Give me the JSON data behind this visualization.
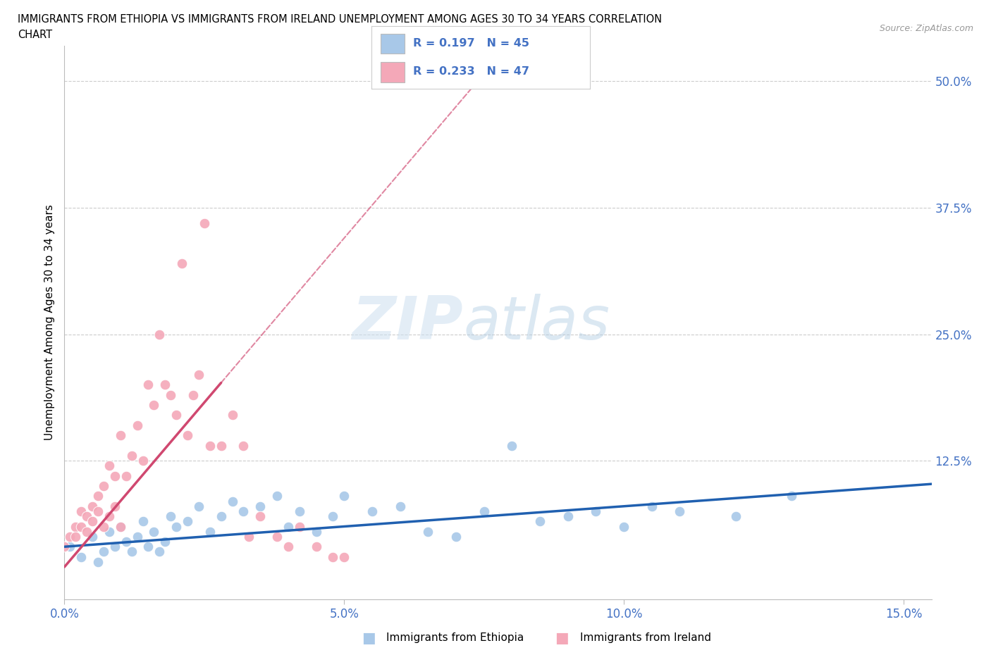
{
  "title_line1": "IMMIGRANTS FROM ETHIOPIA VS IMMIGRANTS FROM IRELAND UNEMPLOYMENT AMONG AGES 30 TO 34 YEARS CORRELATION",
  "title_line2": "CHART",
  "source": "Source: ZipAtlas.com",
  "ylabel": "Unemployment Among Ages 30 to 34 years",
  "xlim": [
    0.0,
    0.155
  ],
  "ylim": [
    -0.012,
    0.535
  ],
  "color_ethiopia": "#a8c8e8",
  "color_ireland": "#f4a8b8",
  "color_trendline_ethiopia": "#2060b0",
  "color_trendline_ireland": "#d04870",
  "axis_color": "#4472c4",
  "grid_color": "#cccccc",
  "background_color": "#ffffff",
  "legend_label1": "Immigrants from Ethiopia",
  "legend_label2": "Immigrants from Ireland",
  "R_ethiopia": "0.197",
  "N_ethiopia": "45",
  "R_ireland": "0.233",
  "N_ireland": "47",
  "ethiopia_x": [
    0.001,
    0.003,
    0.005,
    0.006,
    0.007,
    0.008,
    0.009,
    0.01,
    0.011,
    0.012,
    0.013,
    0.014,
    0.015,
    0.016,
    0.017,
    0.018,
    0.019,
    0.02,
    0.022,
    0.024,
    0.026,
    0.028,
    0.03,
    0.032,
    0.035,
    0.038,
    0.04,
    0.042,
    0.045,
    0.048,
    0.05,
    0.055,
    0.06,
    0.065,
    0.07,
    0.075,
    0.08,
    0.085,
    0.09,
    0.095,
    0.1,
    0.105,
    0.11,
    0.12,
    0.13
  ],
  "ethiopia_y": [
    0.04,
    0.03,
    0.05,
    0.025,
    0.035,
    0.055,
    0.04,
    0.06,
    0.045,
    0.035,
    0.05,
    0.065,
    0.04,
    0.055,
    0.035,
    0.045,
    0.07,
    0.06,
    0.065,
    0.08,
    0.055,
    0.07,
    0.085,
    0.075,
    0.08,
    0.09,
    0.06,
    0.075,
    0.055,
    0.07,
    0.09,
    0.075,
    0.08,
    0.055,
    0.05,
    0.075,
    0.14,
    0.065,
    0.07,
    0.075,
    0.06,
    0.08,
    0.075,
    0.07,
    0.09
  ],
  "ireland_x": [
    0.0,
    0.001,
    0.002,
    0.002,
    0.003,
    0.003,
    0.004,
    0.004,
    0.005,
    0.005,
    0.006,
    0.006,
    0.007,
    0.007,
    0.008,
    0.008,
    0.009,
    0.009,
    0.01,
    0.01,
    0.011,
    0.012,
    0.013,
    0.014,
    0.015,
    0.016,
    0.017,
    0.018,
    0.019,
    0.02,
    0.021,
    0.022,
    0.023,
    0.024,
    0.025,
    0.026,
    0.028,
    0.03,
    0.032,
    0.033,
    0.035,
    0.038,
    0.04,
    0.042,
    0.045,
    0.048,
    0.05
  ],
  "ireland_y": [
    0.04,
    0.05,
    0.06,
    0.05,
    0.075,
    0.06,
    0.055,
    0.07,
    0.08,
    0.065,
    0.09,
    0.075,
    0.1,
    0.06,
    0.12,
    0.07,
    0.08,
    0.11,
    0.15,
    0.06,
    0.11,
    0.13,
    0.16,
    0.125,
    0.2,
    0.18,
    0.25,
    0.2,
    0.19,
    0.17,
    0.32,
    0.15,
    0.19,
    0.21,
    0.36,
    0.14,
    0.14,
    0.17,
    0.14,
    0.05,
    0.07,
    0.05,
    0.04,
    0.06,
    0.04,
    0.03,
    0.03
  ],
  "ireland_trendline_slope": 6.5,
  "ireland_trendline_intercept": 0.02,
  "ethiopia_trendline_slope": 0.4,
  "ethiopia_trendline_intercept": 0.04
}
